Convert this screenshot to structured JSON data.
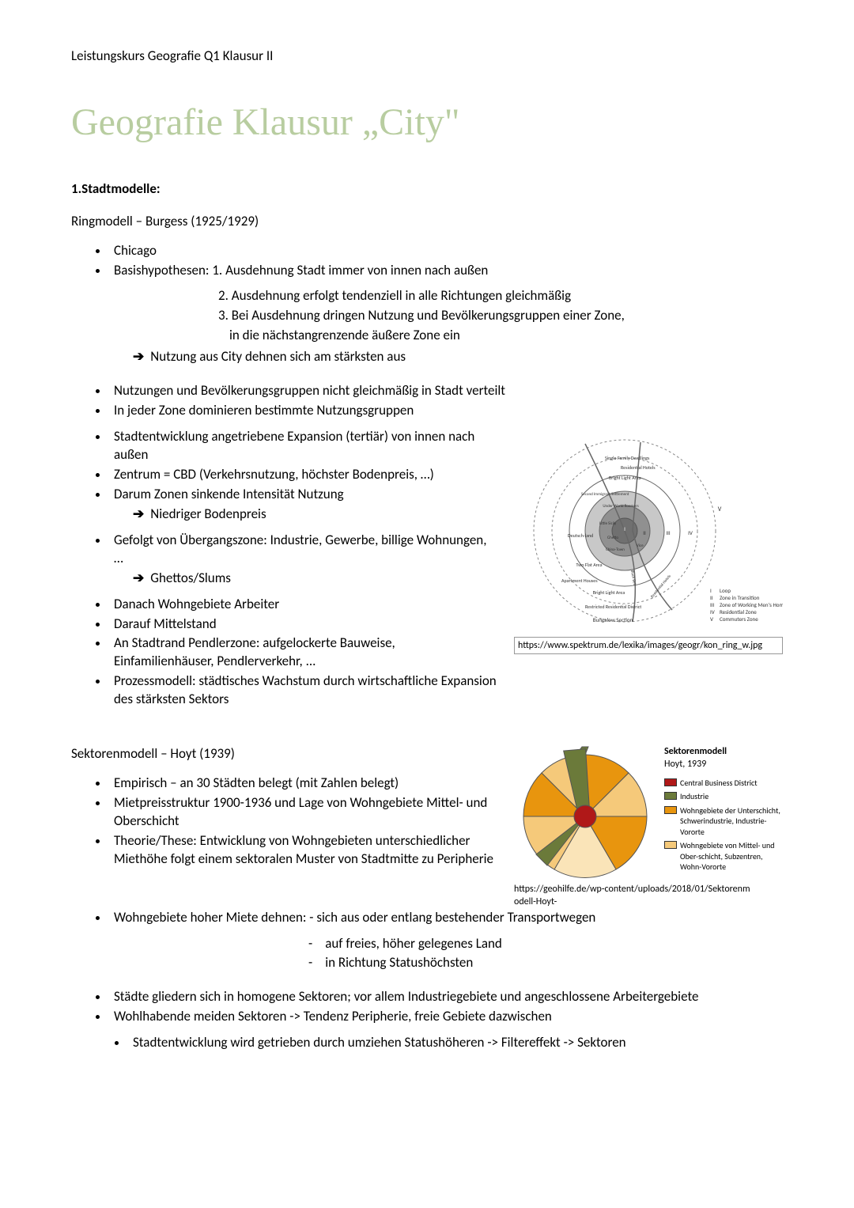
{
  "header": "Leistungskurs Geografie Q1 Klausur II",
  "title": "Geografie Klausur „City\"",
  "section1": {
    "heading": "1.Stadtmodelle:",
    "model1": {
      "title": "Ringmodell – Burgess (1925/1929)",
      "bullets_a": [
        "Chicago",
        "Basishypothesen: 1. Ausdehnung Stadt immer von innen nach außen"
      ],
      "hyp2": "2. Ausdehnung erfolgt tendenziell in alle Richtungen gleichmäßig",
      "hyp3": "3. Bei Ausdehnung dringen Nutzung und Bevölkerungsgruppen einer Zone,",
      "hyp3b": "in die nächstangrenzende äußere Zone ein",
      "arrow1": "Nutzung aus City dehnen sich am stärksten aus",
      "bullets_b": [
        "Nutzungen und Bevölkerungsgruppen nicht gleichmäßig in Stadt verteilt",
        "In jeder Zone dominieren bestimmte Nutzungsgruppen"
      ],
      "bullets_c": [
        "Stadtentwicklung angetriebene Expansion (tertiär) von innen nach außen",
        "Zentrum = CBD (Verkehrsnutzung, höchster Bodenpreis, …)",
        "Darum Zonen sinkende Intensität Nutzung"
      ],
      "sub_c": "Niedriger Bodenpreis",
      "bullets_d": [
        "Gefolgt von Übergangszone: Industrie, Gewerbe, billige Wohnungen, …"
      ],
      "sub_d": "Ghettos/Slums",
      "bullets_e": [
        "Danach Wohngebiete Arbeiter",
        "Darauf Mittelstand",
        "An Stadtrand Pendlerzone: aufgelockerte Bauweise, Einfamilienhäuser, Pendlerverkehr, ...",
        "Prozessmodell: städtisches Wachstum durch wirtschaftliche Expansion des stärksten Sektors"
      ],
      "diagram": {
        "labels": {
          "sfd": "Single Family Dwellings",
          "rh": "Residential Hotels",
          "bla": "Bright Light Area",
          "sis": "Second Immigrant Settlement",
          "uwr": "Under World Roomers",
          "ls": "Little Sicily",
          "dl": "Deutsch-land",
          "gh": "Ghetto",
          "ct": "China-Town",
          "vice": "Vice",
          "tfa": "Two Flat Area",
          "ah": "Apartment Houses",
          "bb": "Black Belt",
          "bla2": "Bright Light Area",
          "rrd": "Restricted Residential District",
          "bs": "Bungalow Section",
          "rh2": "Residential Hotels",
          "I": "I",
          "II": "II",
          "III": "III",
          "IV": "IV",
          "V": "V",
          "leg1": "Loop",
          "leg2": "Zone in Transition",
          "leg3": "Zone of Working Men's Homes",
          "leg4": "Residential Zone",
          "leg5": "Commuters Zone"
        },
        "colors": {
          "ring_fill": "#ffffff",
          "ring_stroke": "#666666",
          "inner_fill": "#a0a0a0",
          "dash_stroke": "#888888"
        },
        "caption": "https://www.spektrum.de/lexika/images/geogr/kon_ring_w.jpg"
      }
    },
    "model2": {
      "title": "Sektorenmodell – Hoyt (1939)",
      "bullets_a": [
        "Empirisch – an 30 Städten belegt (mit Zahlen belegt)",
        "Mietpreisstruktur 1900-1936 und Lage von Wohngebiete Mittel- und Oberschicht",
        "Theorie/These: Entwicklung von Wohngebieten unterschiedlicher Miethöhe folgt einem sektoralen Muster von Stadtmitte zu Peripherie"
      ],
      "diagram": {
        "title": "Sektorenmodell",
        "subtitle": "Hoyt, 1939",
        "colors": {
          "c1": "#b01818",
          "c2": "#6b7a3a",
          "c3": "#e8950e",
          "c4": "#f5c97a",
          "c5": "#fae4b8",
          "stroke": "#555555"
        },
        "legend": [
          {
            "color": "#b01818",
            "label": "Central Business District"
          },
          {
            "color": "#6b7a3a",
            "label": "Industrie"
          },
          {
            "color": "#e8950e",
            "label": "Wohngebiete der Unterschicht, Schwerindustrie, Industrie-Vororte"
          },
          {
            "color": "#f5c97a",
            "label": "Wohngebiete von Mittel- und Ober-schicht, Subzentren, Wohn-Vororte"
          }
        ],
        "caption": "https://geohilfe.de/wp-content/uploads/2018/01/Sektorenmodell-Hoyt-"
      },
      "bullet_expand": "Wohngebiete hoher Miete dehnen:   -   sich aus oder entlang bestehender Transportwegen",
      "dash_items": [
        "auf freies, höher gelegenes Land",
        "in Richtung Statushöchsten"
      ],
      "bullets_b": [
        "Städte gliedern sich in homogene Sektoren; vor allem Industriegebiete und angeschlossene Arbeitergebiete",
        "Wohlhabende meiden Sektoren -> Tendenz Peripherie, freie Gebiete dazwischen"
      ],
      "nested": "Stadtentwicklung wird getrieben durch umziehen Statushöheren -> Filtereffekt -> Sektoren"
    }
  }
}
